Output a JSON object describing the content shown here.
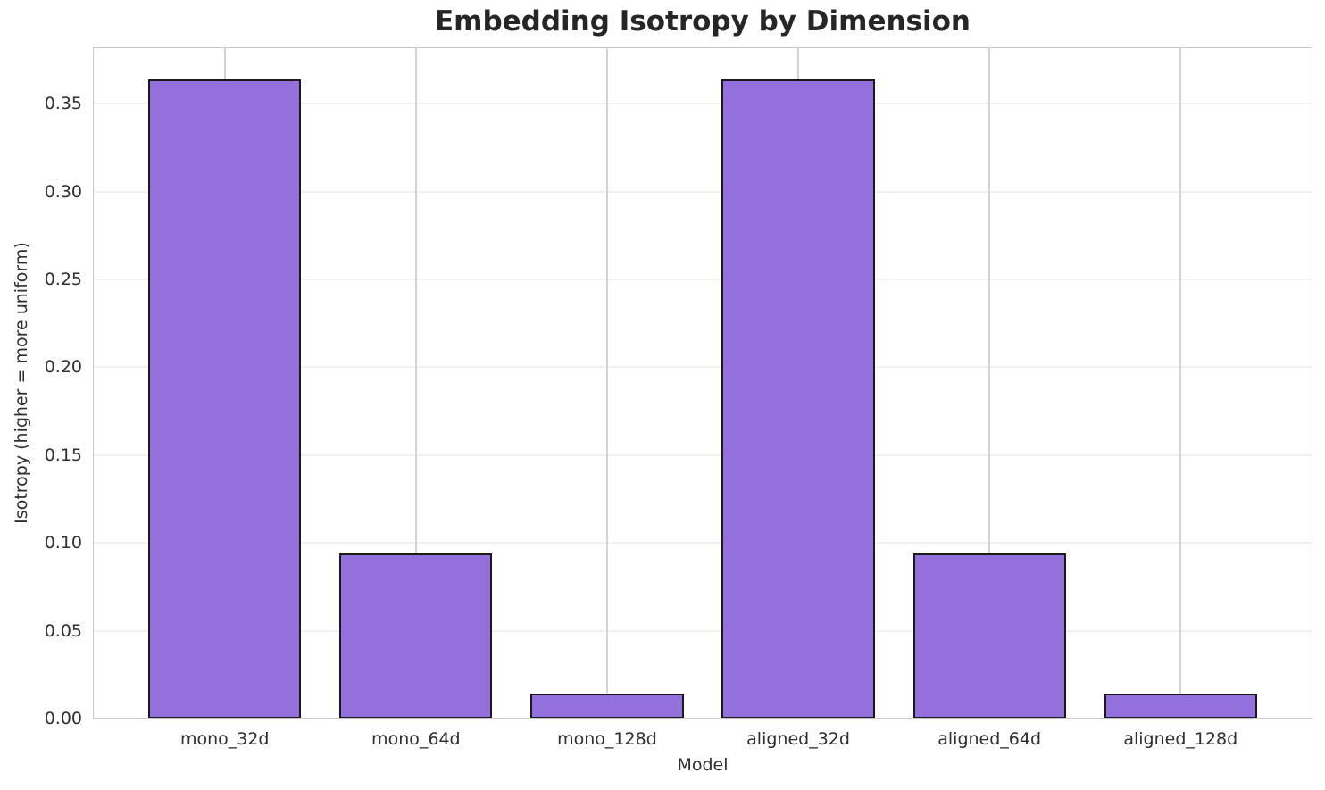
{
  "chart_data": {
    "type": "bar",
    "title": "Embedding Isotropy by Dimension",
    "xlabel": "Model",
    "ylabel": "Isotropy (higher = more uniform)",
    "categories": [
      "mono_32d",
      "mono_64d",
      "mono_128d",
      "aligned_32d",
      "aligned_64d",
      "aligned_128d"
    ],
    "values": [
      0.364,
      0.094,
      0.014,
      0.364,
      0.094,
      0.014
    ],
    "yticks": [
      0.0,
      0.05,
      0.1,
      0.15,
      0.2,
      0.25,
      0.3,
      0.35
    ],
    "ytick_labels": [
      "0.00",
      "0.05",
      "0.10",
      "0.15",
      "0.20",
      "0.25",
      "0.30",
      "0.35"
    ],
    "ylim": [
      0,
      0.3822
    ],
    "xlim": [
      -0.69,
      5.69
    ],
    "bar_width": 0.8,
    "grid": true,
    "legend": "none",
    "colors": {
      "bar_fill": "#9370DB",
      "bar_edge": "#1a1a1a",
      "grid_horizontal": "#f0f0f0",
      "grid_vertical": "#d4d4d4",
      "spine": "#c8c8c8",
      "title_text": "#262626",
      "tick_text": "#2e2e2e",
      "background": "#ffffff"
    }
  }
}
